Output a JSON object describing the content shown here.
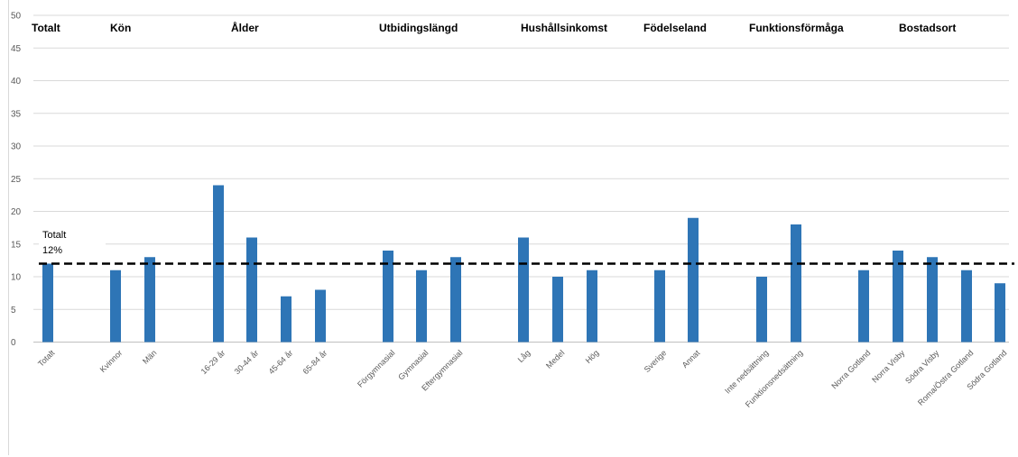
{
  "chart_data": {
    "type": "bar",
    "ylim": [
      0,
      50
    ],
    "yticks": [
      0,
      5,
      10,
      15,
      20,
      25,
      30,
      35,
      40,
      45,
      50
    ],
    "grid": true,
    "bar_color": "#2E75B6",
    "categories": [
      "Totalt",
      "Kvinnor",
      "Män",
      "16-29 år",
      "30-44 år",
      "45-64 år",
      "65-84 år",
      "Förgymnasial",
      "Gymnasial",
      "Eftergymnasial",
      "Låg",
      "Medel",
      "Hög",
      "Sverige",
      "Annat",
      "Inte nedsättning",
      "Funktionsnedsättning",
      "Norra Gotland",
      "Norra Visby",
      "Södra Visby",
      "Roma/Östra Gotland",
      "Södra Gotland"
    ],
    "values": [
      12,
      11,
      13,
      24,
      16,
      7,
      8,
      14,
      11,
      13,
      16,
      10,
      11,
      11,
      19,
      10,
      18,
      11,
      14,
      13,
      11,
      9
    ],
    "groups": [
      {
        "label": "Totalt"
      },
      {
        "label": "Kön"
      },
      {
        "label": "Ålder"
      },
      {
        "label": "Utbidingslängd"
      },
      {
        "label": "Hushållsinkomst"
      },
      {
        "label": "Födelseland"
      },
      {
        "label": "Funktionsförmåga"
      },
      {
        "label": "Bostadsort"
      }
    ],
    "reference_line": {
      "value": 12,
      "label_line1": "Totalt",
      "label_line2": "12%",
      "color": "#000000"
    }
  }
}
